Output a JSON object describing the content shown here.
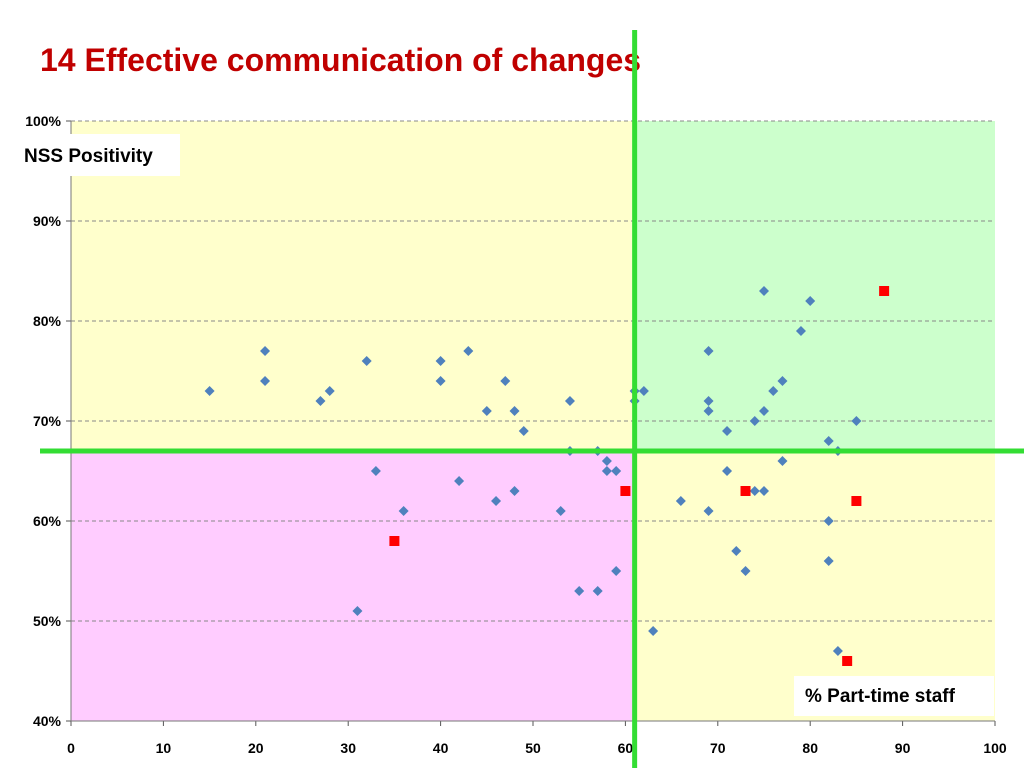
{
  "title": "14 Effective communication of changes",
  "chart_data": {
    "type": "scatter",
    "title": "14 Effective communication of changes",
    "xlabel": "% Part-time staff",
    "ylabel": "NSS Positivity",
    "xlim": [
      0,
      100
    ],
    "ylim": [
      40,
      100
    ],
    "x_ticks": [
      "0",
      "10",
      "20",
      "30",
      "40",
      "50",
      "60",
      "70",
      "80",
      "90",
      "100"
    ],
    "y_ticks": [
      "40%",
      "50%",
      "60%",
      "70%",
      "80%",
      "90%",
      "100%"
    ],
    "grid": "horizontal dashed",
    "quadrant_split": {
      "x": 61,
      "y": 67
    },
    "quadrant_colors": {
      "top_left": "#ffffcc",
      "top_right": "#ccffcc",
      "bottom_left": "#ffccff",
      "bottom_right": "#ffffcc"
    },
    "divider_color": "#33dd33",
    "series": [
      {
        "marker": "diamond",
        "color": "#4f81bd",
        "points": [
          [
            15,
            73
          ],
          [
            21,
            77
          ],
          [
            21,
            74
          ],
          [
            27,
            72
          ],
          [
            28,
            73
          ],
          [
            31,
            51
          ],
          [
            32,
            76
          ],
          [
            33,
            65
          ],
          [
            36,
            61
          ],
          [
            40,
            76
          ],
          [
            40,
            74
          ],
          [
            42,
            64
          ],
          [
            43,
            77
          ],
          [
            45,
            71
          ],
          [
            46,
            62
          ],
          [
            47,
            74
          ],
          [
            48,
            71
          ],
          [
            48,
            63
          ],
          [
            49,
            69
          ],
          [
            53,
            61
          ],
          [
            54,
            72
          ],
          [
            54,
            67
          ],
          [
            55,
            53
          ],
          [
            57,
            67
          ],
          [
            57,
            53
          ],
          [
            58,
            66
          ],
          [
            58,
            65
          ],
          [
            59,
            65
          ],
          [
            59,
            55
          ],
          [
            61,
            73
          ],
          [
            61,
            72
          ],
          [
            62,
            73
          ],
          [
            63,
            49
          ],
          [
            66,
            62
          ],
          [
            69,
            77
          ],
          [
            69,
            72
          ],
          [
            69,
            71
          ],
          [
            69,
            61
          ],
          [
            71,
            69
          ],
          [
            71,
            65
          ],
          [
            72,
            57
          ],
          [
            73,
            55
          ],
          [
            74,
            70
          ],
          [
            74,
            63
          ],
          [
            75,
            83
          ],
          [
            75,
            71
          ],
          [
            75,
            63
          ],
          [
            76,
            73
          ],
          [
            77,
            74
          ],
          [
            77,
            66
          ],
          [
            79,
            79
          ],
          [
            80,
            82
          ],
          [
            82,
            68
          ],
          [
            82,
            60
          ],
          [
            82,
            56
          ],
          [
            83,
            67
          ],
          [
            83,
            47
          ],
          [
            85,
            70
          ]
        ]
      },
      {
        "marker": "square",
        "color": "#ff0000",
        "points": [
          [
            35,
            58
          ],
          [
            60,
            63
          ],
          [
            73,
            63
          ],
          [
            84,
            46
          ],
          [
            85,
            62
          ],
          [
            88,
            83
          ]
        ]
      }
    ]
  }
}
